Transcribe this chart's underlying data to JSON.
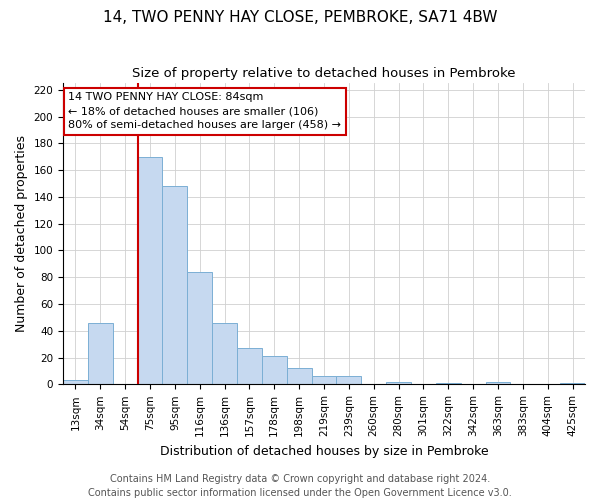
{
  "title": "14, TWO PENNY HAY CLOSE, PEMBROKE, SA71 4BW",
  "subtitle": "Size of property relative to detached houses in Pembroke",
  "xlabel": "Distribution of detached houses by size in Pembroke",
  "ylabel": "Number of detached properties",
  "bar_labels": [
    "13sqm",
    "34sqm",
    "54sqm",
    "75sqm",
    "95sqm",
    "116sqm",
    "136sqm",
    "157sqm",
    "178sqm",
    "198sqm",
    "219sqm",
    "239sqm",
    "260sqm",
    "280sqm",
    "301sqm",
    "322sqm",
    "342sqm",
    "363sqm",
    "383sqm",
    "404sqm",
    "425sqm"
  ],
  "bar_values": [
    3,
    46,
    0,
    170,
    148,
    84,
    46,
    27,
    21,
    12,
    6,
    6,
    0,
    2,
    0,
    1,
    0,
    2,
    0,
    0,
    1
  ],
  "bar_color": "#c6d9f0",
  "bar_edge_color": "#7bafd4",
  "highlight_line_color": "#cc0000",
  "highlight_line_bar_index": 3,
  "annotation_line1": "14 TWO PENNY HAY CLOSE: 84sqm",
  "annotation_line2": "← 18% of detached houses are smaller (106)",
  "annotation_line3": "80% of semi-detached houses are larger (458) →",
  "annotation_box_color": "#ffffff",
  "annotation_box_edge": "#cc0000",
  "ylim": [
    0,
    225
  ],
  "yticks": [
    0,
    20,
    40,
    60,
    80,
    100,
    120,
    140,
    160,
    180,
    200,
    220
  ],
  "footer1": "Contains HM Land Registry data © Crown copyright and database right 2024.",
  "footer2": "Contains public sector information licensed under the Open Government Licence v3.0.",
  "title_fontsize": 11,
  "subtitle_fontsize": 9.5,
  "xlabel_fontsize": 9,
  "ylabel_fontsize": 9,
  "tick_fontsize": 7.5,
  "annotation_fontsize": 8,
  "footer_fontsize": 7
}
